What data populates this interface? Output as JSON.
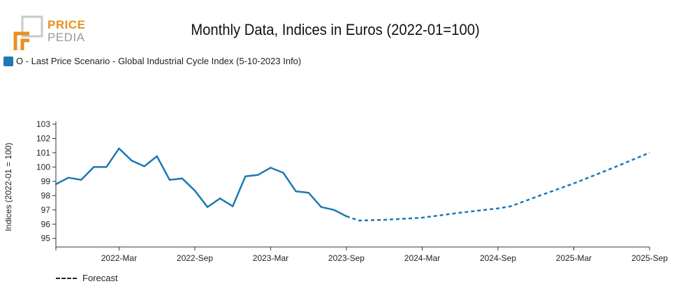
{
  "logo": {
    "line1": "PRICE",
    "line2": "PEDIA",
    "accent": "#e8901e",
    "gray": "#9a9a9a"
  },
  "chart_data": {
    "type": "line",
    "title": "Monthly Data, Indices in Euros (2022-01=100)",
    "ylabel": "Indices (2022-01 = 100)",
    "xlabel": "",
    "ylim": [
      94.4,
      103
    ],
    "yticks": [
      95,
      96,
      97,
      98,
      99,
      100,
      101,
      102,
      103
    ],
    "x_range": [
      0,
      47
    ],
    "xticks": [
      {
        "label": "2022-Mar",
        "x": 5
      },
      {
        "label": "2022-Sep",
        "x": 11
      },
      {
        "label": "2023-Mar",
        "x": 17
      },
      {
        "label": "2023-Sep",
        "x": 23
      },
      {
        "label": "2024-Mar",
        "x": 29
      },
      {
        "label": "2024-Sep",
        "x": 35
      },
      {
        "label": "2025-Mar",
        "x": 41
      },
      {
        "label": "2025-Sep",
        "x": 47
      }
    ],
    "series": [
      {
        "name": "O - Last Price Scenario - Global Industrial Cycle Index (5-10-2023 Info)",
        "color": "#1f77b4",
        "actual": [
          [
            0,
            98.8
          ],
          [
            1,
            99.25
          ],
          [
            2,
            99.1
          ],
          [
            3,
            100.0
          ],
          [
            4,
            100.0
          ],
          [
            5,
            101.3
          ],
          [
            6,
            100.45
          ],
          [
            7,
            100.05
          ],
          [
            8,
            100.75
          ],
          [
            9,
            99.1
          ],
          [
            10,
            99.2
          ],
          [
            11,
            98.35
          ],
          [
            12,
            97.2
          ],
          [
            13,
            97.8
          ],
          [
            14,
            97.25
          ],
          [
            15,
            99.35
          ],
          [
            16,
            99.45
          ],
          [
            17,
            99.95
          ],
          [
            18,
            99.6
          ],
          [
            19,
            98.3
          ],
          [
            20,
            98.2
          ],
          [
            21,
            97.2
          ],
          [
            22,
            97.0
          ],
          [
            23,
            96.55
          ]
        ],
        "forecast": [
          [
            23,
            96.55
          ],
          [
            24,
            96.25
          ],
          [
            26,
            96.3
          ],
          [
            29,
            96.45
          ],
          [
            32,
            96.8
          ],
          [
            35,
            97.1
          ],
          [
            36,
            97.25
          ],
          [
            38,
            97.9
          ],
          [
            41,
            98.85
          ],
          [
            44,
            99.9
          ],
          [
            47,
            101.0
          ]
        ]
      }
    ],
    "legend": "top-left",
    "forecast_label": "Forecast"
  }
}
